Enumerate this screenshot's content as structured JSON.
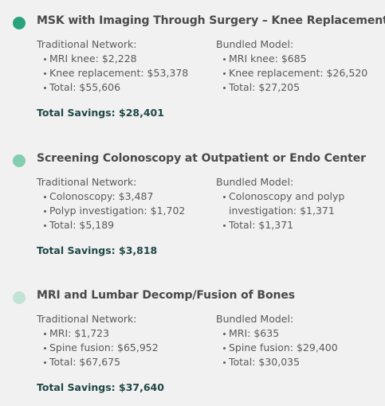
{
  "colors": {
    "background": "#f1f1f1",
    "dot_1": "#2aa37c",
    "dot_2": "#84cdb0",
    "dot_3": "#c0e3d5",
    "title": "#4a4a4a",
    "body_text": "#5a5a5a",
    "savings": "#1f4746"
  },
  "sections": [
    {
      "title": "MSK with Imaging Through Surgery – Knee Replacement",
      "traditional": {
        "heading": "Traditional Network:",
        "items": [
          "MRI knee: $2,228",
          "Knee replacement: $53,378",
          "Total: $55,606"
        ]
      },
      "bundled": {
        "heading": "Bundled Model:",
        "items": [
          "MRI knee: $685",
          "Knee replacement: $26,520",
          "Total: $27,205"
        ]
      },
      "savings": "Total Savings: $28,401"
    },
    {
      "title": "Screening Colonoscopy at Outpatient or Endo Center",
      "traditional": {
        "heading": "Traditional Network:",
        "items": [
          "Colonoscopy: $3,487",
          "Polyp investigation: $1,702",
          "Total: $5,189"
        ]
      },
      "bundled": {
        "heading": "Bundled Model:",
        "items": [
          "Colonoscopy and polyp investigation: $1,371",
          "Total: $1,371"
        ]
      },
      "savings": "Total Savings: $3,818"
    },
    {
      "title": "MRI and Lumbar Decomp/Fusion of Bones",
      "traditional": {
        "heading": "Traditional Network:",
        "items": [
          "MRI: $1,723",
          "Spine fusion: $65,952",
          "Total: $67,675"
        ]
      },
      "bundled": {
        "heading": "Bundled Model:",
        "items": [
          "MRI: $635",
          "Spine fusion: $29,400",
          "Total: $30,035"
        ]
      },
      "savings": "Total Savings: $37,640"
    }
  ]
}
